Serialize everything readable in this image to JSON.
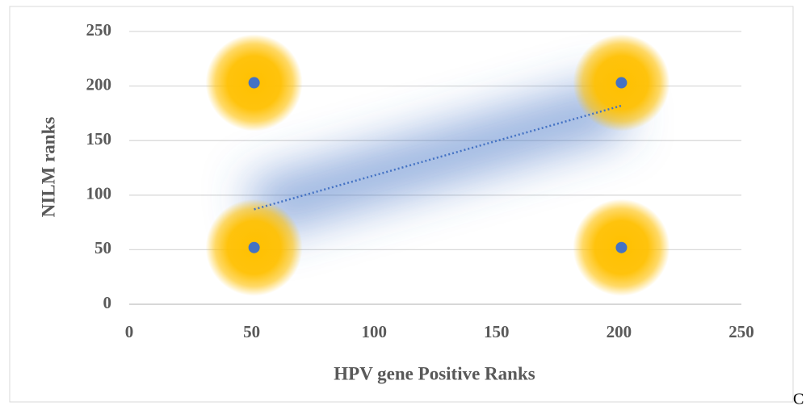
{
  "chart_data": {
    "type": "scatter",
    "series": [
      {
        "color": "#4472c4",
        "x": [
          51,
          51,
          201,
          201
        ],
        "values": [
          52,
          203,
          203,
          52
        ]
      }
    ],
    "trendline": {
      "x": [
        51,
        201
      ],
      "values": [
        87,
        182
      ],
      "color": "#4472c4"
    },
    "glow_color": "#ffc000",
    "xlabel": "HPV gene Positive Ranks",
    "ylabel": "NILM ranks",
    "xlim": [
      0,
      250
    ],
    "ylim": [
      0,
      250
    ],
    "xticks": [
      0,
      50,
      100,
      150,
      200,
      250
    ],
    "yticks": [
      0,
      50,
      100,
      150,
      200,
      250
    ],
    "grid": true
  },
  "annotation": "C"
}
